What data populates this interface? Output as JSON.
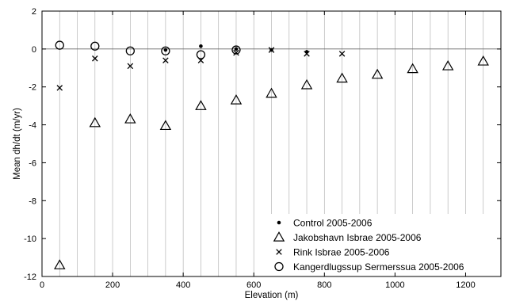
{
  "chart_data": {
    "type": "scatter",
    "xlabel": "Elevation (m)",
    "ylabel": "Mean dh/dt (m/yr)",
    "xlim": [
      0,
      1300
    ],
    "ylim": [
      -12,
      2
    ],
    "x_ticks": [
      0,
      200,
      400,
      600,
      800,
      1000,
      1200
    ],
    "y_ticks": [
      2,
      0,
      -2,
      -4,
      -6,
      -8,
      -10,
      -12
    ],
    "vertical_grid_lines": [
      50,
      100,
      150,
      200,
      250,
      300,
      350,
      400,
      450,
      500,
      550,
      600,
      650,
      700,
      750,
      800,
      850,
      900,
      950,
      1000,
      1050,
      1100,
      1150,
      1200,
      1250
    ],
    "zero_line": true,
    "legend_position": "bottom-right",
    "series": [
      {
        "name": "Control 2005-2006",
        "marker": "dot",
        "color": "#000000",
        "points": [
          [
            350,
            -0.05
          ],
          [
            450,
            0.15
          ],
          [
            550,
            0.0
          ],
          [
            650,
            -0.05
          ],
          [
            750,
            -0.15
          ]
        ]
      },
      {
        "name": "Jakobshavn Isbrae 2005-2006",
        "marker": "triangle",
        "color": "#000000",
        "points": [
          [
            50,
            -11.4
          ],
          [
            150,
            -3.9
          ],
          [
            250,
            -3.7
          ],
          [
            350,
            -4.05
          ],
          [
            450,
            -3.0
          ],
          [
            550,
            -2.7
          ],
          [
            650,
            -2.35
          ],
          [
            750,
            -1.9
          ],
          [
            850,
            -1.55
          ],
          [
            950,
            -1.35
          ],
          [
            1050,
            -1.05
          ],
          [
            1150,
            -0.9
          ],
          [
            1250,
            -0.65
          ]
        ]
      },
      {
        "name": "Rink Isbrae 2005-2006",
        "marker": "cross",
        "color": "#000000",
        "points": [
          [
            50,
            -2.05
          ],
          [
            150,
            -0.5
          ],
          [
            250,
            -0.9
          ],
          [
            350,
            -0.6
          ],
          [
            450,
            -0.6
          ],
          [
            550,
            -0.2
          ],
          [
            650,
            -0.05
          ],
          [
            750,
            -0.25
          ],
          [
            850,
            -0.25
          ]
        ]
      },
      {
        "name": "Kangerdlugssup Sermerssua 2005-2006",
        "marker": "circle",
        "color": "#000000",
        "points": [
          [
            50,
            0.2
          ],
          [
            150,
            0.15
          ],
          [
            250,
            -0.1
          ],
          [
            350,
            -0.1
          ],
          [
            450,
            -0.3
          ],
          [
            550,
            -0.05
          ]
        ]
      }
    ]
  }
}
